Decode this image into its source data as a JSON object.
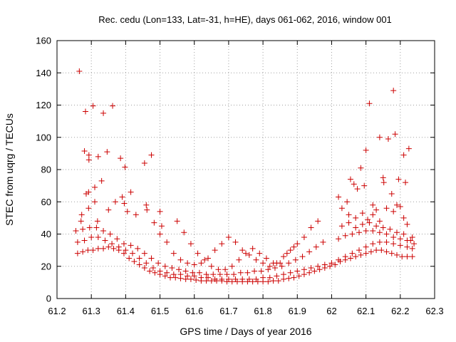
{
  "chart_data": {
    "type": "scatter",
    "title": "Rec. cedu (Lon=133, Lat=-31, h=HE), days 061-062, 2016, window 001",
    "xlabel": "GPS time / Days of year 2016",
    "ylabel": "STEC from uqrg / TECUs",
    "xlim": [
      61.2,
      62.3
    ],
    "ylim": [
      0,
      160
    ],
    "xticks": [
      61.2,
      61.3,
      61.4,
      61.5,
      61.6,
      61.7,
      61.8,
      61.9,
      62.0,
      62.1,
      62.2,
      62.3
    ],
    "xtick_labels": [
      "61.2",
      "61.3",
      "61.4",
      "61.5",
      "61.6",
      "61.7",
      "61.8",
      "61.9",
      "62",
      "62.1",
      "62.2",
      "62.3"
    ],
    "yticks": [
      0,
      20,
      40,
      60,
      80,
      100,
      120,
      140,
      160
    ],
    "ytick_labels": [
      "0",
      "20",
      "40",
      "60",
      "80",
      "100",
      "120",
      "140",
      "160"
    ],
    "grid": true,
    "marker": "+",
    "color": "#cc0000",
    "points": [
      [
        61.265,
        141
      ],
      [
        61.283,
        116
      ],
      [
        61.305,
        119.5
      ],
      [
        61.335,
        115
      ],
      [
        61.362,
        119.5
      ],
      [
        61.32,
        88
      ],
      [
        61.293,
        89
      ],
      [
        61.293,
        86
      ],
      [
        61.28,
        91.5
      ],
      [
        61.346,
        91
      ],
      [
        61.385,
        87
      ],
      [
        61.398,
        81.5
      ],
      [
        61.455,
        84
      ],
      [
        61.475,
        89
      ],
      [
        61.415,
        66
      ],
      [
        61.33,
        73
      ],
      [
        61.31,
        69
      ],
      [
        61.292,
        66
      ],
      [
        61.285,
        65
      ],
      [
        61.27,
        48
      ],
      [
        61.272,
        52
      ],
      [
        61.292,
        56
      ],
      [
        61.31,
        60
      ],
      [
        61.318,
        48
      ],
      [
        61.35,
        55
      ],
      [
        61.37,
        60
      ],
      [
        61.39,
        63
      ],
      [
        61.396,
        59
      ],
      [
        61.405,
        54
      ],
      [
        61.43,
        52
      ],
      [
        61.46,
        58
      ],
      [
        61.462,
        55
      ],
      [
        61.483,
        47
      ],
      [
        61.5,
        54
      ],
      [
        61.505,
        45
      ],
      [
        61.26,
        28
      ],
      [
        61.275,
        29
      ],
      [
        61.29,
        30
      ],
      [
        61.305,
        30
      ],
      [
        61.32,
        31
      ],
      [
        61.335,
        31
      ],
      [
        61.35,
        32
      ],
      [
        61.365,
        31
      ],
      [
        61.38,
        30
      ],
      [
        61.395,
        28
      ],
      [
        61.41,
        25
      ],
      [
        61.425,
        23
      ],
      [
        61.44,
        21
      ],
      [
        61.455,
        19
      ],
      [
        61.47,
        17
      ],
      [
        61.485,
        16
      ],
      [
        61.5,
        15
      ],
      [
        61.515,
        14
      ],
      [
        61.53,
        13
      ],
      [
        61.545,
        13
      ],
      [
        61.56,
        12.5
      ],
      [
        61.575,
        12
      ],
      [
        61.59,
        12
      ],
      [
        61.605,
        11.5
      ],
      [
        61.62,
        11
      ],
      [
        61.635,
        11
      ],
      [
        61.65,
        11
      ],
      [
        61.665,
        11
      ],
      [
        61.68,
        11
      ],
      [
        61.695,
        10.5
      ],
      [
        61.71,
        10.5
      ],
      [
        61.725,
        10.5
      ],
      [
        61.74,
        10.5
      ],
      [
        61.755,
        10.5
      ],
      [
        61.77,
        10.5
      ],
      [
        61.785,
        10.5
      ],
      [
        61.8,
        10.5
      ],
      [
        61.815,
        10.5
      ],
      [
        61.83,
        11
      ],
      [
        61.845,
        11
      ],
      [
        61.86,
        12
      ],
      [
        61.875,
        12.5
      ],
      [
        61.89,
        13
      ],
      [
        61.905,
        14
      ],
      [
        61.92,
        15
      ],
      [
        61.935,
        16
      ],
      [
        61.95,
        17
      ],
      [
        61.965,
        18
      ],
      [
        61.98,
        19
      ],
      [
        61.995,
        20
      ],
      [
        62.01,
        21
      ],
      [
        62.025,
        23
      ],
      [
        62.04,
        24
      ],
      [
        62.055,
        25
      ],
      [
        62.07,
        26
      ],
      [
        62.085,
        27
      ],
      [
        62.1,
        28
      ],
      [
        62.115,
        29
      ],
      [
        62.13,
        30
      ],
      [
        62.145,
        30
      ],
      [
        62.16,
        29
      ],
      [
        62.175,
        28
      ],
      [
        62.19,
        27
      ],
      [
        62.205,
        26
      ],
      [
        62.22,
        26
      ],
      [
        62.235,
        26
      ],
      [
        61.26,
        35
      ],
      [
        61.28,
        36
      ],
      [
        61.3,
        38
      ],
      [
        61.32,
        38
      ],
      [
        61.34,
        36
      ],
      [
        61.36,
        34
      ],
      [
        61.38,
        32
      ],
      [
        61.4,
        30
      ],
      [
        61.42,
        28
      ],
      [
        61.44,
        25
      ],
      [
        61.46,
        22
      ],
      [
        61.48,
        19
      ],
      [
        61.5,
        17
      ],
      [
        61.52,
        16
      ],
      [
        61.54,
        15
      ],
      [
        61.56,
        15
      ],
      [
        61.58,
        14
      ],
      [
        61.6,
        14
      ],
      [
        61.62,
        13
      ],
      [
        61.64,
        13
      ],
      [
        61.66,
        12
      ],
      [
        61.68,
        12
      ],
      [
        61.7,
        12
      ],
      [
        61.72,
        12
      ],
      [
        61.74,
        12
      ],
      [
        61.76,
        12
      ],
      [
        61.78,
        12
      ],
      [
        61.8,
        13
      ],
      [
        61.82,
        13
      ],
      [
        61.84,
        14
      ],
      [
        61.86,
        15
      ],
      [
        61.88,
        16
      ],
      [
        61.9,
        17
      ],
      [
        61.92,
        18
      ],
      [
        61.94,
        19
      ],
      [
        61.96,
        20
      ],
      [
        61.98,
        21
      ],
      [
        62.0,
        22
      ],
      [
        62.02,
        24
      ],
      [
        62.04,
        26
      ],
      [
        62.06,
        28
      ],
      [
        62.08,
        30
      ],
      [
        62.1,
        32
      ],
      [
        62.12,
        34
      ],
      [
        62.14,
        35
      ],
      [
        62.16,
        35
      ],
      [
        62.18,
        34
      ],
      [
        62.2,
        33
      ],
      [
        62.22,
        32
      ],
      [
        62.235,
        31
      ],
      [
        61.255,
        42
      ],
      [
        61.275,
        43
      ],
      [
        61.295,
        44
      ],
      [
        61.315,
        44
      ],
      [
        61.335,
        42
      ],
      [
        61.355,
        40
      ],
      [
        61.375,
        37
      ],
      [
        61.395,
        34
      ],
      [
        61.415,
        33
      ],
      [
        61.435,
        31
      ],
      [
        61.455,
        28
      ],
      [
        61.475,
        25
      ],
      [
        61.495,
        22
      ],
      [
        61.515,
        20
      ],
      [
        61.535,
        19
      ],
      [
        61.555,
        18
      ],
      [
        61.575,
        17
      ],
      [
        61.595,
        16
      ],
      [
        61.615,
        16
      ],
      [
        61.635,
        15
      ],
      [
        61.655,
        15
      ],
      [
        61.675,
        15
      ],
      [
        61.695,
        15
      ],
      [
        61.715,
        15
      ],
      [
        61.735,
        16
      ],
      [
        61.755,
        16
      ],
      [
        61.775,
        17
      ],
      [
        61.795,
        17
      ],
      [
        61.815,
        18
      ],
      [
        61.835,
        19
      ],
      [
        61.855,
        20
      ],
      [
        61.875,
        22
      ],
      [
        61.895,
        24
      ],
      [
        61.915,
        26
      ],
      [
        61.935,
        29
      ],
      [
        61.955,
        32
      ],
      [
        61.975,
        35
      ],
      [
        62.02,
        37
      ],
      [
        62.04,
        39
      ],
      [
        62.06,
        40
      ],
      [
        62.08,
        41
      ],
      [
        62.1,
        42
      ],
      [
        62.12,
        42
      ],
      [
        62.14,
        41
      ],
      [
        62.16,
        40
      ],
      [
        62.18,
        38
      ],
      [
        62.2,
        37
      ],
      [
        62.22,
        36
      ],
      [
        61.5,
        40
      ],
      [
        61.52,
        35
      ],
      [
        61.54,
        28
      ],
      [
        61.56,
        24
      ],
      [
        61.58,
        22
      ],
      [
        61.6,
        21
      ],
      [
        61.62,
        22
      ],
      [
        61.64,
        25
      ],
      [
        61.66,
        30
      ],
      [
        61.68,
        34
      ],
      [
        61.7,
        38
      ],
      [
        61.72,
        35
      ],
      [
        61.74,
        30
      ],
      [
        61.76,
        27
      ],
      [
        61.78,
        24
      ],
      [
        61.8,
        22
      ],
      [
        61.82,
        20
      ],
      [
        61.84,
        22
      ],
      [
        61.86,
        26
      ],
      [
        61.88,
        30
      ],
      [
        61.9,
        34
      ],
      [
        61.92,
        38
      ],
      [
        61.94,
        44
      ],
      [
        61.96,
        48
      ],
      [
        61.55,
        48
      ],
      [
        61.57,
        41
      ],
      [
        61.59,
        34
      ],
      [
        61.61,
        28
      ],
      [
        61.63,
        24
      ],
      [
        61.65,
        20
      ],
      [
        61.67,
        18
      ],
      [
        61.69,
        18
      ],
      [
        61.71,
        20
      ],
      [
        61.73,
        24
      ],
      [
        61.75,
        28
      ],
      [
        61.77,
        31
      ],
      [
        61.79,
        28
      ],
      [
        61.81,
        25
      ],
      [
        61.83,
        22
      ],
      [
        61.85,
        22
      ],
      [
        61.87,
        28
      ],
      [
        61.89,
        32
      ],
      [
        62.02,
        63
      ],
      [
        62.03,
        56
      ],
      [
        62.045,
        60
      ],
      [
        62.055,
        74
      ],
      [
        62.065,
        71
      ],
      [
        62.075,
        68
      ],
      [
        62.085,
        81
      ],
      [
        62.095,
        70
      ],
      [
        62.1,
        92
      ],
      [
        62.11,
        121
      ],
      [
        62.12,
        58
      ],
      [
        62.13,
        55
      ],
      [
        62.14,
        100
      ],
      [
        62.15,
        75
      ],
      [
        62.152,
        72
      ],
      [
        62.165,
        99
      ],
      [
        62.175,
        65
      ],
      [
        62.18,
        129
      ],
      [
        62.185,
        102
      ],
      [
        62.195,
        74
      ],
      [
        62.2,
        57
      ],
      [
        62.21,
        89
      ],
      [
        62.215,
        72
      ],
      [
        62.225,
        93
      ],
      [
        62.05,
        52
      ],
      [
        62.07,
        50
      ],
      [
        62.09,
        53
      ],
      [
        62.105,
        49
      ],
      [
        62.12,
        52
      ],
      [
        62.14,
        48
      ],
      [
        62.16,
        56
      ],
      [
        62.18,
        54
      ],
      [
        62.19,
        58
      ],
      [
        62.21,
        50
      ],
      [
        62.22,
        46
      ],
      [
        62.235,
        38
      ],
      [
        62.03,
        45
      ],
      [
        62.05,
        47
      ],
      [
        62.07,
        44
      ],
      [
        62.09,
        46
      ],
      [
        62.11,
        47
      ],
      [
        62.13,
        45
      ],
      [
        62.15,
        44
      ],
      [
        62.17,
        43
      ],
      [
        62.19,
        41
      ],
      [
        62.21,
        40
      ],
      [
        62.23,
        36
      ],
      [
        62.24,
        34
      ]
    ]
  }
}
